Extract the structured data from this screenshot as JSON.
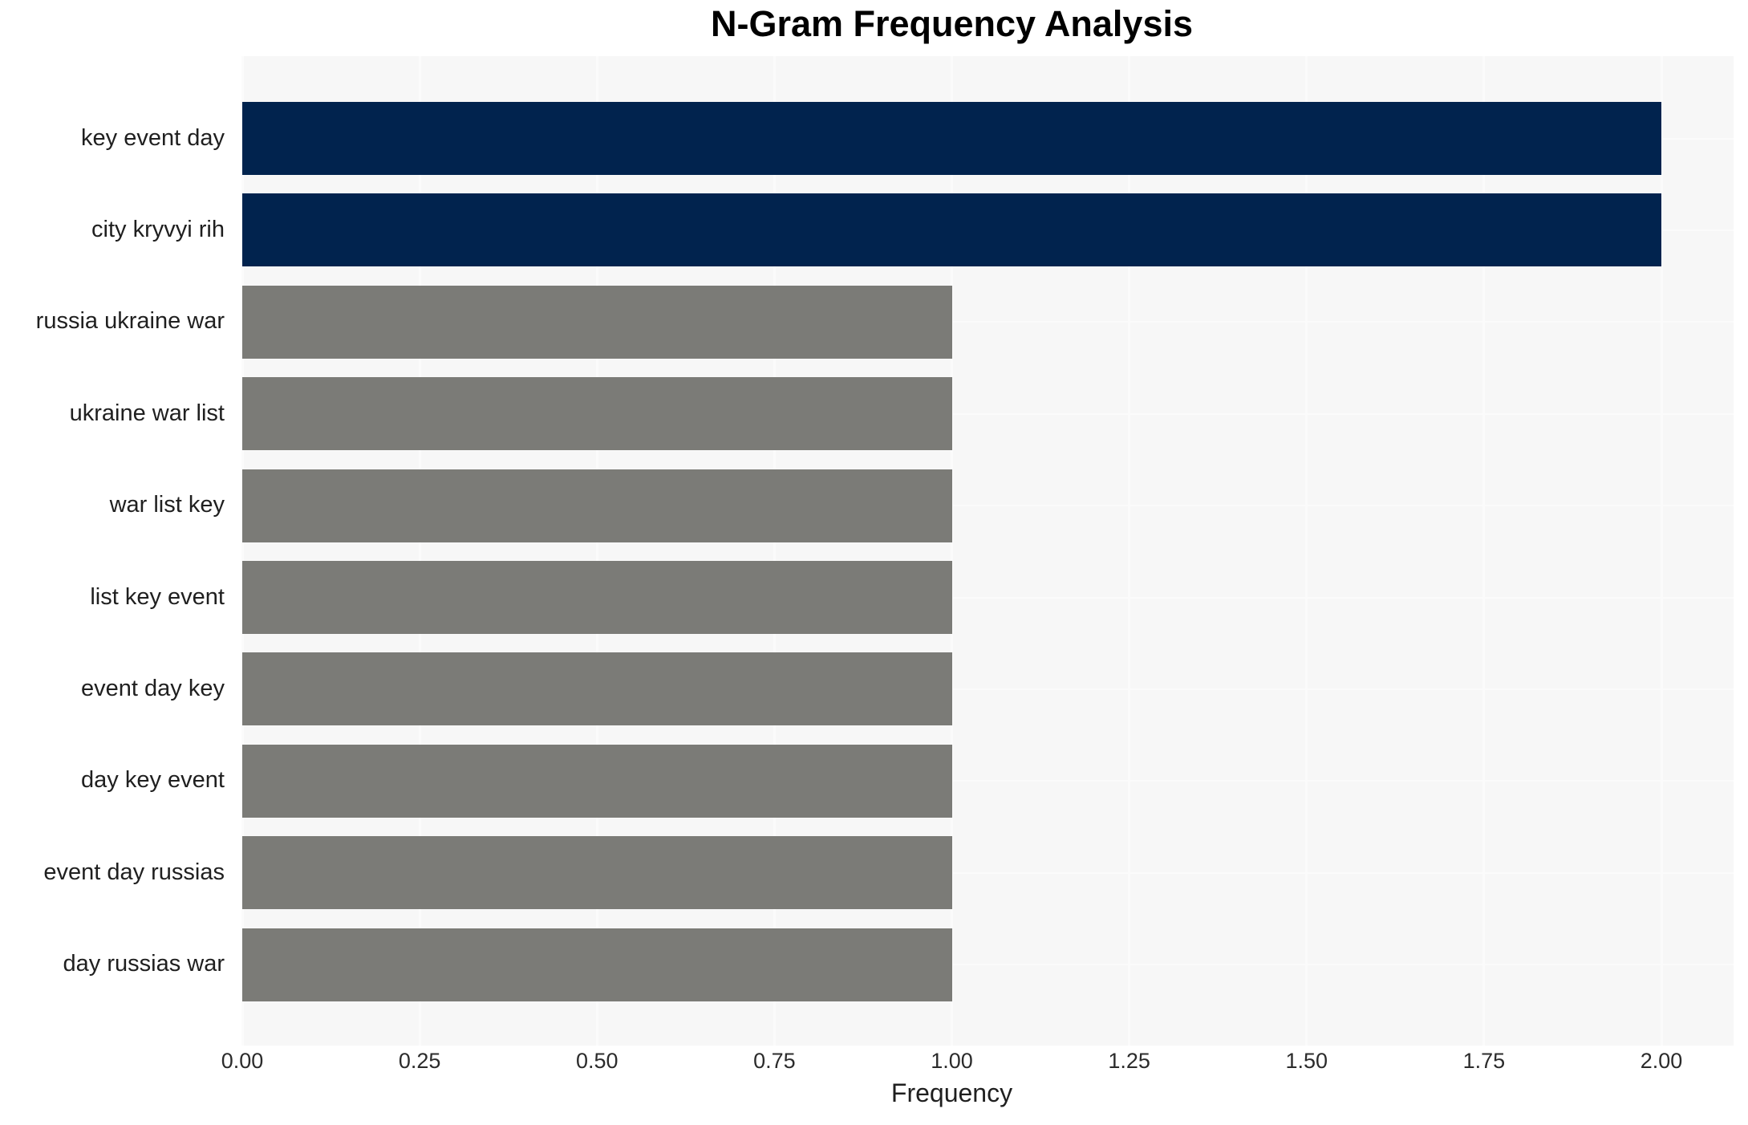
{
  "chart_data": {
    "type": "bar",
    "orientation": "horizontal",
    "title": "N-Gram Frequency Analysis",
    "xlabel": "Frequency",
    "ylabel": "",
    "categories": [
      "key event day",
      "city kryvyi rih",
      "russia ukraine war",
      "ukraine war list",
      "war list key",
      "list key event",
      "event day key",
      "day key event",
      "event day russias",
      "day russias war"
    ],
    "values": [
      2,
      2,
      1,
      1,
      1,
      1,
      1,
      1,
      1,
      1
    ],
    "bar_colors": [
      "#01234e",
      "#01234e",
      "#7b7b77",
      "#7b7b77",
      "#7b7b77",
      "#7b7b77",
      "#7b7b77",
      "#7b7b77",
      "#7b7b77",
      "#7b7b77"
    ],
    "xlim": [
      0,
      2
    ],
    "xticks": [
      0,
      0.25,
      0.5,
      0.75,
      1,
      1.25,
      1.5,
      1.75,
      2
    ],
    "xtick_labels": [
      "0.00",
      "0.25",
      "0.50",
      "0.75",
      "1.00",
      "1.25",
      "1.50",
      "1.75",
      "2.00"
    ],
    "grid": true,
    "legend": false,
    "colors": {
      "highlight_bar": "#01234e",
      "default_bar": "#7b7b77",
      "plot_background": "#f7f7f7",
      "grid_line": "#fbfbfb",
      "title_text": "#000000",
      "tick_text": "#2b2b2b",
      "label_text": "#1f1f1f"
    }
  }
}
